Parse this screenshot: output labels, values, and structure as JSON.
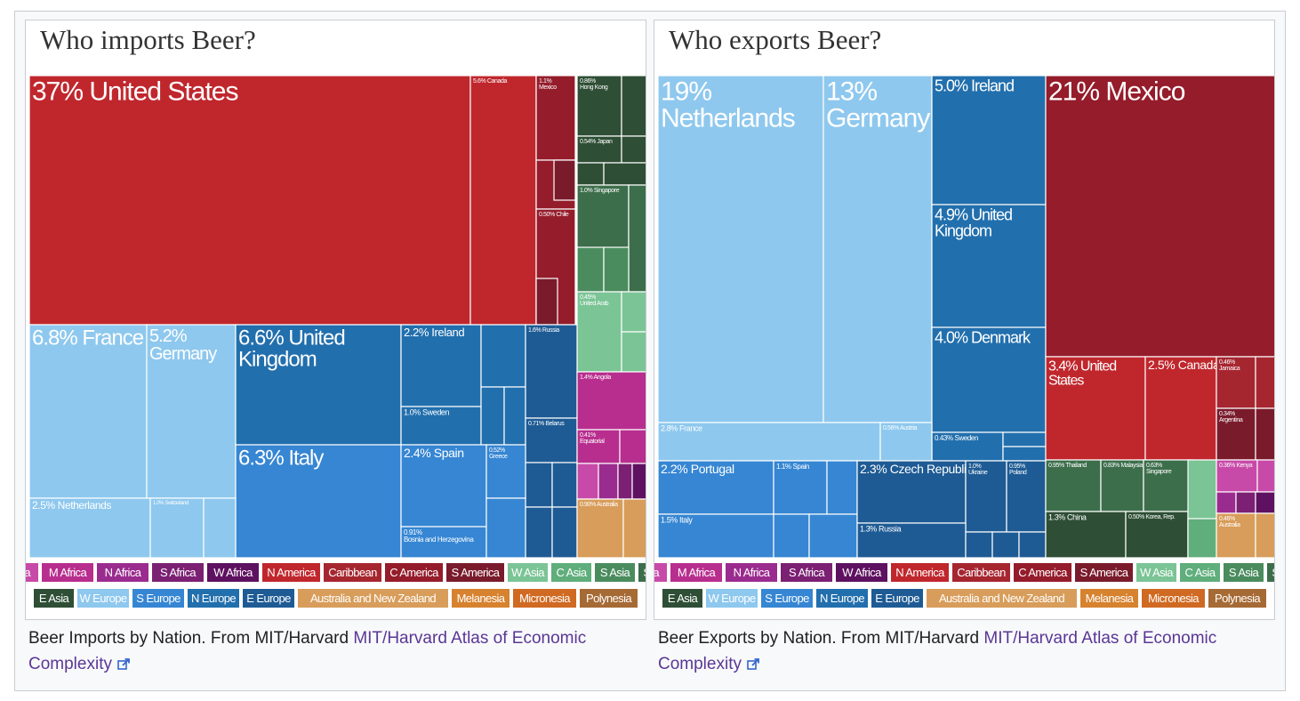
{
  "colors": {
    "E Africa": "#c84aa8",
    "M Africa": "#b82e8e",
    "N Africa": "#9b2c8f",
    "S Africa": "#7b2073",
    "W Africa": "#5e1160",
    "N America": "#c0272d",
    "Caribbean": "#a62630",
    "C America": "#951c2b",
    "S America": "#7a1b2c",
    "W Asia": "#7bc495",
    "C Asia": "#5fae7b",
    "S Asia": "#4a8c5e",
    "SE Asia": "#3c6e4b",
    "E Asia": "#2e4e35",
    "W Europe": "#8ec8ee",
    "S Europe": "#3686d3",
    "N Europe": "#226fad",
    "E Europe": "#1e5b94",
    "Australia and New Zealand": "#d89d5a",
    "Melanesia": "#d7822f",
    "Micronesia": "#d06a22",
    "Polynesia": "#a66a35"
  },
  "legend": [
    "E Africa",
    "M Africa",
    "N Africa",
    "S Africa",
    "W Africa",
    "N America",
    "Caribbean",
    "C America",
    "S America",
    "W Asia",
    "C Asia",
    "S Asia",
    "SE Asia",
    "E Asia",
    "W Europe",
    "S Europe",
    "N Europe",
    "E Europe",
    "Australia and New Zealand",
    "Melanesia",
    "Micronesia",
    "Polynesia"
  ],
  "chart_data": [
    {
      "type": "treemap",
      "title": "Who imports Beer?",
      "unit": "%",
      "series": [
        {
          "label": "United States",
          "value": 37,
          "region": "N America"
        },
        {
          "label": "Canada",
          "value": 5.6,
          "region": "N America"
        },
        {
          "label": "Mexico",
          "value": 1.1,
          "region": "C America"
        },
        {
          "label": "Hong Kong",
          "value": 0.86,
          "region": "E Asia"
        },
        {
          "label": "Japan",
          "value": 0.54,
          "region": "E Asia"
        },
        {
          "label": "Singapore",
          "value": 1.0,
          "region": "SE Asia"
        },
        {
          "label": "Chile",
          "value": 0.5,
          "region": "S America"
        },
        {
          "label": "United Arab",
          "value": 0.45,
          "region": "W Asia"
        },
        {
          "label": "France",
          "value": 6.8,
          "region": "W Europe"
        },
        {
          "label": "Germany",
          "value": 5.2,
          "region": "W Europe"
        },
        {
          "label": "Netherlands",
          "value": 2.5,
          "region": "W Europe"
        },
        {
          "label": "Switzerland",
          "value": 1.0,
          "region": "W Europe"
        },
        {
          "label": "United Kingdom",
          "value": 6.6,
          "region": "N Europe"
        },
        {
          "label": "Ireland",
          "value": 2.2,
          "region": "N Europe"
        },
        {
          "label": "Sweden",
          "value": 1.0,
          "region": "N Europe"
        },
        {
          "label": "Italy",
          "value": 6.3,
          "region": "S Europe"
        },
        {
          "label": "Spain",
          "value": 2.4,
          "region": "S Europe"
        },
        {
          "label": "Bosnia and Herzegovina",
          "value": 0.91,
          "region": "S Europe"
        },
        {
          "label": "Greece",
          "value": 0.52,
          "region": "S Europe"
        },
        {
          "label": "Russia",
          "value": 1.6,
          "region": "E Europe"
        },
        {
          "label": "Belarus",
          "value": 0.71,
          "region": "E Europe"
        },
        {
          "label": "Angola",
          "value": 1.4,
          "region": "M Africa"
        },
        {
          "label": "Equatorial",
          "value": 0.41,
          "region": "M Africa"
        },
        {
          "label": "Australia",
          "value": 0.9,
          "region": "Australia and New Zealand"
        }
      ]
    },
    {
      "type": "treemap",
      "title": "Who exports Beer?",
      "unit": "%",
      "series": [
        {
          "label": "Netherlands",
          "value": 19,
          "region": "W Europe"
        },
        {
          "label": "Germany",
          "value": 13,
          "region": "W Europe"
        },
        {
          "label": "France",
          "value": 2.8,
          "region": "W Europe"
        },
        {
          "label": "Austria",
          "value": 0.56,
          "region": "W Europe"
        },
        {
          "label": "Ireland",
          "value": 5.0,
          "region": "N Europe"
        },
        {
          "label": "United Kingdom",
          "value": 4.9,
          "region": "N Europe"
        },
        {
          "label": "Denmark",
          "value": 4.0,
          "region": "N Europe"
        },
        {
          "label": "Sweden",
          "value": 0.43,
          "region": "N Europe"
        },
        {
          "label": "Mexico",
          "value": 21,
          "region": "C America"
        },
        {
          "label": "United States",
          "value": 3.4,
          "region": "N America"
        },
        {
          "label": "Canada",
          "value": 2.5,
          "region": "N America"
        },
        {
          "label": "Jamaica",
          "value": 0.46,
          "region": "Caribbean"
        },
        {
          "label": "Argentina",
          "value": 0.34,
          "region": "S America"
        },
        {
          "label": "Portugal",
          "value": 2.2,
          "region": "S Europe"
        },
        {
          "label": "Spain",
          "value": 1.1,
          "region": "S Europe"
        },
        {
          "label": "Italy",
          "value": 1.5,
          "region": "S Europe"
        },
        {
          "label": "Czech Republic",
          "value": 2.3,
          "region": "E Europe"
        },
        {
          "label": "Russia",
          "value": 1.3,
          "region": "E Europe"
        },
        {
          "label": "Ukraine",
          "value": 1.0,
          "region": "E Europe"
        },
        {
          "label": "Poland",
          "value": 0.95,
          "region": "E Europe"
        },
        {
          "label": "Thailand",
          "value": 0.95,
          "region": "SE Asia"
        },
        {
          "label": "Malaysia",
          "value": 0.83,
          "region": "SE Asia"
        },
        {
          "label": "Singapore",
          "value": 0.63,
          "region": "SE Asia"
        },
        {
          "label": "China",
          "value": 1.3,
          "region": "E Asia"
        },
        {
          "label": "Korea, Rep.",
          "value": 0.5,
          "region": "E Asia"
        },
        {
          "label": "Kenya",
          "value": 0.36,
          "region": "E Africa"
        },
        {
          "label": "Australia",
          "value": 0.46,
          "region": "Australia and New Zealand"
        }
      ]
    }
  ],
  "imports": {
    "title": "Who imports Beer?",
    "labels": {
      "us": "37% United States",
      "canada": "5.6% Canada",
      "mexico": "1.1% Mexico",
      "hongkong": "0.86% Hong Kong",
      "japan": "0.54% Japan",
      "singapore": "1.0% Singapore",
      "chile": "0.50% Chile",
      "uae": "0.45% United Arab",
      "france": "6.8% France",
      "germany": "5.2% Germany",
      "uk": "6.6% United Kingdom",
      "ireland": "2.2% Ireland",
      "sweden": "1.0% Sweden",
      "russia": "1.6% Russia",
      "angola": "1.4% Angola",
      "belarus": "0.71% Belarus",
      "equatorial": "0.41% Equatorial",
      "italy": "6.3% Italy",
      "spain": "2.4% Spain",
      "greece": "0.52% Greece",
      "bosnia": "0.91% Bosnia and Herzegovina",
      "netherlands": "2.5% Netherlands",
      "switzerland": "1.0% Switzerland",
      "australia": "0.90% Australia"
    },
    "caption": {
      "text": "Beer Imports by Nation. From MIT/Harvard ",
      "link": "MIT/Harvard Atlas of Economic Complexity"
    }
  },
  "exports": {
    "title": "Who exports Beer?",
    "labels": {
      "netherlands": "19% Netherlands",
      "germany": "13% Germany",
      "ireland": "5.0% Ireland",
      "uk": "4.9% United Kingdom",
      "denmark": "4.0% Denmark",
      "sweden": "0.43% Sweden",
      "mexico": "21% Mexico",
      "us": "3.4% United States",
      "canada": "2.5% Canada",
      "jamaica": "0.46% Jamaica",
      "argentina": "0.34% Argentina",
      "france": "2.8% France",
      "austria": "0.56% Austria",
      "portugal": "2.2% Portugal",
      "spain": "1.1% Spain",
      "czech": "2.3% Czech Republic",
      "ukraine": "1.0% Ukraine",
      "poland": "0.95% Poland",
      "italy": "1.5% Italy",
      "russia": "1.3% Russia",
      "thailand": "0.95% Thailand",
      "malaysia": "0.83% Malaysia",
      "singapore": "0.63% Singapore",
      "china": "1.3% China",
      "korea": "0.50% Korea, Rep.",
      "kenya": "0.36% Kenya",
      "australia": "0.46% Australia"
    },
    "caption": {
      "text": "Beer Exports by Nation. From MIT/Harvard ",
      "link": "MIT/Harvard Atlas of Economic Complexity"
    }
  }
}
